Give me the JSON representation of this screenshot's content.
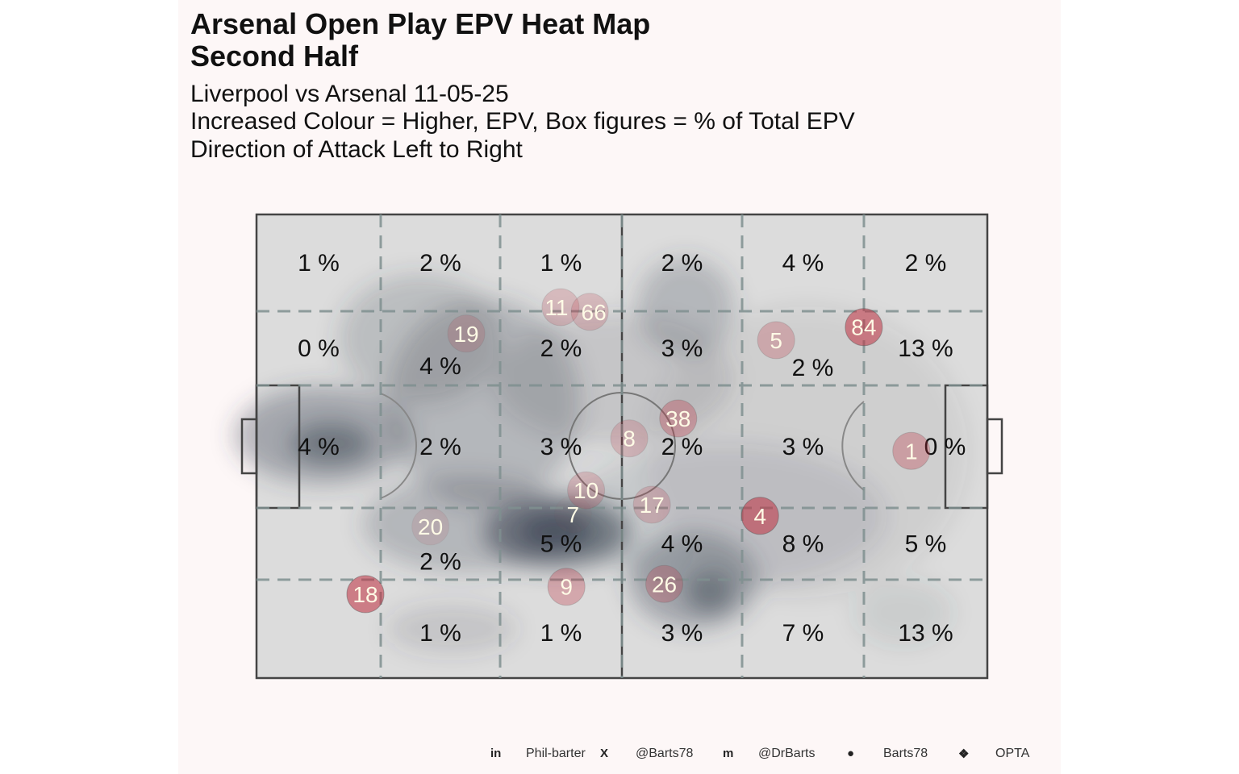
{
  "title_line1": "Arsenal  Open Play EPV Heat Map",
  "title_line2": "Second Half",
  "subtitle_lines": [
    "Liverpool vs Arsenal 11-05-25",
    "Increased Colour = Higher, EPV, Box figures = % of Total EPV",
    "Direction of Attack Left to Right"
  ],
  "footer": [
    {
      "icon": "linkedin-icon",
      "glyph": "in",
      "label": "Phil-barter"
    },
    {
      "icon": "x-twitter-icon",
      "glyph": "X",
      "label": "@Barts78"
    },
    {
      "icon": "mastodon-icon",
      "glyph": "m",
      "label": "@DrBarts"
    },
    {
      "icon": "github-icon",
      "glyph": "●",
      "label": "Barts78"
    },
    {
      "icon": "dropbox-icon",
      "glyph": "❖",
      "label": "OPTA"
    }
  ],
  "colors": {
    "pitch": "#dcdcdc",
    "grid": "#7f9090",
    "bubble": "#c0303f",
    "heat": "#3a4552",
    "panel": "#fdf7f7"
  },
  "chart_data": {
    "type": "heatmap",
    "zones_pct": [
      [
        "1 %",
        "2 %",
        "1 %",
        "2 %",
        "4 %",
        "2 %"
      ],
      [
        "0 %",
        "4 %",
        "2 %",
        "3 %",
        "2 %",
        "13 %"
      ],
      [
        "4 %",
        "2 %",
        "3 %",
        "2 %",
        "3 %",
        "0 %"
      ],
      [
        "",
        "2 %",
        "5 %",
        "4 %",
        "8 %",
        "5 %"
      ],
      [
        "",
        "1 %",
        "1 %",
        "3 %",
        "7 %",
        "13 %"
      ]
    ],
    "players": [
      {
        "number": "84",
        "x": 83.1,
        "y": 24.3,
        "intensity": 0.55
      },
      {
        "number": "18",
        "x": 14.9,
        "y": 81.9,
        "intensity": 0.55
      },
      {
        "number": "4",
        "x": 68.9,
        "y": 65.0,
        "intensity": 0.55
      },
      {
        "number": "5",
        "x": 71.1,
        "y": 27.1,
        "intensity": 0.25
      },
      {
        "number": "11",
        "x": 41.6,
        "y": 20.0,
        "intensity": 0.2
      },
      {
        "number": "66",
        "x": 45.6,
        "y": 21.0,
        "intensity": 0.2
      },
      {
        "number": "19",
        "x": 28.7,
        "y": 25.7,
        "intensity": 0.15
      },
      {
        "number": "38",
        "x": 57.7,
        "y": 44.0,
        "intensity": 0.3
      },
      {
        "number": "8",
        "x": 51.0,
        "y": 48.3,
        "intensity": 0.2
      },
      {
        "number": "1",
        "x": 89.6,
        "y": 51.0,
        "intensity": 0.3
      },
      {
        "number": "10",
        "x": 45.1,
        "y": 59.5,
        "intensity": 0.2
      },
      {
        "number": "17",
        "x": 54.1,
        "y": 62.6,
        "intensity": 0.2
      },
      {
        "number": "7",
        "x": 43.3,
        "y": 64.7,
        "intensity": 0.03
      },
      {
        "number": "20",
        "x": 23.8,
        "y": 67.3,
        "intensity": 0.1
      },
      {
        "number": "9",
        "x": 42.4,
        "y": 80.3,
        "intensity": 0.3
      },
      {
        "number": "26",
        "x": 55.8,
        "y": 79.7,
        "intensity": 0.25
      }
    ]
  }
}
